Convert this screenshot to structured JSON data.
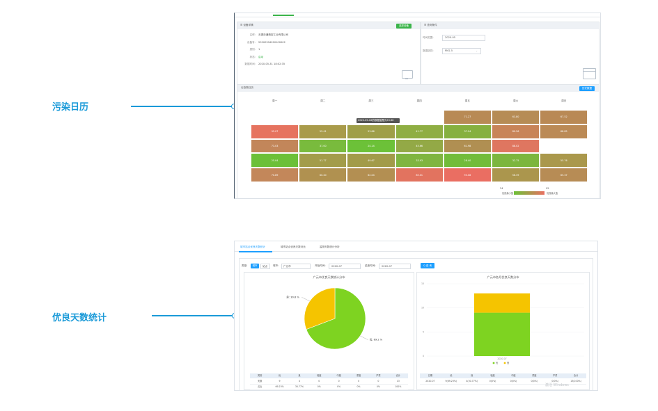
{
  "callouts": {
    "pollution_calendar": "污染日历",
    "good_days_stats": "优良天数统计"
  },
  "screen1": {
    "device_panel": {
      "title": "☰ 设备详情",
      "action_label": "选择设备",
      "rows": [
        {
          "label": "名称:",
          "value": "无锡泽通精密工业有限公司"
        },
        {
          "label": "设备号:",
          "value": "20200316020100002"
        },
        {
          "label": "类别:",
          "value": "1"
        },
        {
          "label": "状态:",
          "value": "启动"
        },
        {
          "label": "数据时间:",
          "value": "2020-05-31 18:02:35"
        }
      ]
    },
    "query_panel": {
      "title": "☰ 查询条件",
      "time_label": "时间范围:",
      "time_value": "2020-05",
      "factor_label": "数据选择:",
      "factor_value": "PM2.5"
    },
    "calendar": {
      "title": "污染物日历",
      "button_label": "历史数据",
      "weekdays": [
        "周一",
        "周二",
        "周三",
        "周四",
        "周五",
        "周六",
        "周日"
      ],
      "tooltip": "2020-05-06的数据值是为53.86",
      "cells": [
        {
          "r": 0,
          "c": 4,
          "v": "71.27",
          "color": "#b88a55"
        },
        {
          "r": 0,
          "c": 5,
          "v": "63.80",
          "color": "#b68c55"
        },
        {
          "r": 0,
          "c": 6,
          "v": "67.52",
          "color": "#b98955"
        },
        {
          "r": 1,
          "c": 0,
          "v": "95.07",
          "color": "#e6735f"
        },
        {
          "r": 1,
          "c": 1,
          "v": "55.41",
          "color": "#a99b4a"
        },
        {
          "r": 1,
          "c": 2,
          "v": "53.86",
          "color": "#9f9f48"
        },
        {
          "r": 1,
          "c": 3,
          "v": "41.77",
          "color": "#8fae43"
        },
        {
          "r": 1,
          "c": 4,
          "v": "37.94",
          "color": "#86b03f"
        },
        {
          "r": 1,
          "c": 5,
          "v": "80.56",
          "color": "#c88458"
        },
        {
          "r": 1,
          "c": 6,
          "v": "68.85",
          "color": "#bb8a56"
        },
        {
          "r": 2,
          "c": 0,
          "v": "73.03",
          "color": "#c2865a"
        },
        {
          "r": 2,
          "c": 1,
          "v": "37.00",
          "color": "#79bb3d"
        },
        {
          "r": 2,
          "c": 2,
          "v": "24.14",
          "color": "#6cc138"
        },
        {
          "r": 2,
          "c": 3,
          "v": "45.66",
          "color": "#93a946"
        },
        {
          "r": 2,
          "c": 4,
          "v": "61.98",
          "color": "#b08f52"
        },
        {
          "r": 2,
          "c": 5,
          "v": "88.02",
          "color": "#df7660"
        },
        {
          "r": 3,
          "c": 0,
          "v": "25.04",
          "color": "#6cc038"
        },
        {
          "r": 3,
          "c": 1,
          "v": "51.77",
          "color": "#a39c4a"
        },
        {
          "r": 3,
          "c": 2,
          "v": "49.67",
          "color": "#a29b49"
        },
        {
          "r": 3,
          "c": 3,
          "v": "33.93",
          "color": "#7fb540"
        },
        {
          "r": 3,
          "c": 4,
          "v": "28.40",
          "color": "#72bc3a"
        },
        {
          "r": 3,
          "c": 5,
          "v": "32.75",
          "color": "#7cb63e"
        },
        {
          "r": 3,
          "c": 6,
          "v": "55.76",
          "color": "#aa984c"
        },
        {
          "r": 4,
          "c": 0,
          "v": "70.89",
          "color": "#c3875a"
        },
        {
          "r": 4,
          "c": 1,
          "v": "60.40",
          "color": "#b09150"
        },
        {
          "r": 4,
          "c": 2,
          "v": "62.04",
          "color": "#b38f52"
        },
        {
          "r": 4,
          "c": 3,
          "v": "85.01",
          "color": "#e2735f"
        },
        {
          "r": 4,
          "c": 4,
          "v": "93.08",
          "color": "#ea6e62"
        },
        {
          "r": 4,
          "c": 5,
          "v": "56.39",
          "color": "#ab964d"
        },
        {
          "r": 4,
          "c": 6,
          "v": "65.37",
          "color": "#b78c55"
        }
      ],
      "legend_min": "24",
      "legend_max": "95",
      "legend_low_label": "优良最小值",
      "legend_high_label": "优良最大值"
    }
  },
  "screen2": {
    "tabs": [
      "城市站点优良天数统计",
      "城市站点优良天数对比",
      "监测天数统计分析"
    ],
    "filters": {
      "type_label": "类型:",
      "type_options": [
        "城市",
        "站点"
      ],
      "city_label": "城市:",
      "city_value": "广元市",
      "start_label": "开始时间:",
      "start_value": "2020-07",
      "end_label": "结束时间:",
      "end_value": "2020-07",
      "search_label": "Q 查 询"
    },
    "pie": {
      "title": "广元市优良天数统计分布"
    },
    "bar": {
      "title": "广元市各月优良天数分布"
    },
    "left_table": {
      "headers": [
        "类别",
        "优",
        "良",
        "轻度",
        "中度",
        "重度",
        "严重",
        "合计"
      ],
      "rows": [
        [
          "天数",
          "9",
          "4",
          "0",
          "0",
          "0",
          "0",
          "13"
        ],
        [
          "占比",
          "69.23%",
          "30.77%",
          "0%",
          "0%",
          "0%",
          "0%",
          "100%"
        ]
      ]
    },
    "right_table": {
      "headers": [
        "日期",
        "优",
        "良",
        "轻度",
        "中度",
        "重度",
        "严重",
        "合计"
      ],
      "rows": [
        [
          "2020-07",
          "9(69.23%)",
          "4(30.77%)",
          "0(0%)",
          "0(0%)",
          "0(0%)",
          "0(0%)",
          "13(100%)"
        ]
      ]
    },
    "watermark": "激活 Windows"
  },
  "chart_data": [
    {
      "type": "pie",
      "title": "广元市优良天数统计分布",
      "categories": [
        "优",
        "良"
      ],
      "values": [
        9,
        4
      ],
      "labels": [
        "优: 69.2 %",
        "良: 30.8 %"
      ],
      "colors": [
        "#7ed321",
        "#f5c400"
      ]
    },
    {
      "type": "bar",
      "title": "广元市各月优良天数分布",
      "categories": [
        "2020-07"
      ],
      "series": [
        {
          "name": "优",
          "values": [
            9
          ],
          "color": "#7ed321"
        },
        {
          "name": "良",
          "values": [
            4
          ],
          "color": "#f5c400"
        }
      ],
      "stacked": true,
      "ylim": [
        0,
        15
      ],
      "yticks": [
        "0",
        "5",
        "10",
        "15"
      ],
      "legend": "bottom",
      "colors": {
        "excellent": "#7ed321",
        "good": "#f5c400"
      }
    }
  ],
  "colors": {
    "accent": "#1a9ad8",
    "green_button": "#3bb44a",
    "blue_button": "#1e9fff"
  }
}
